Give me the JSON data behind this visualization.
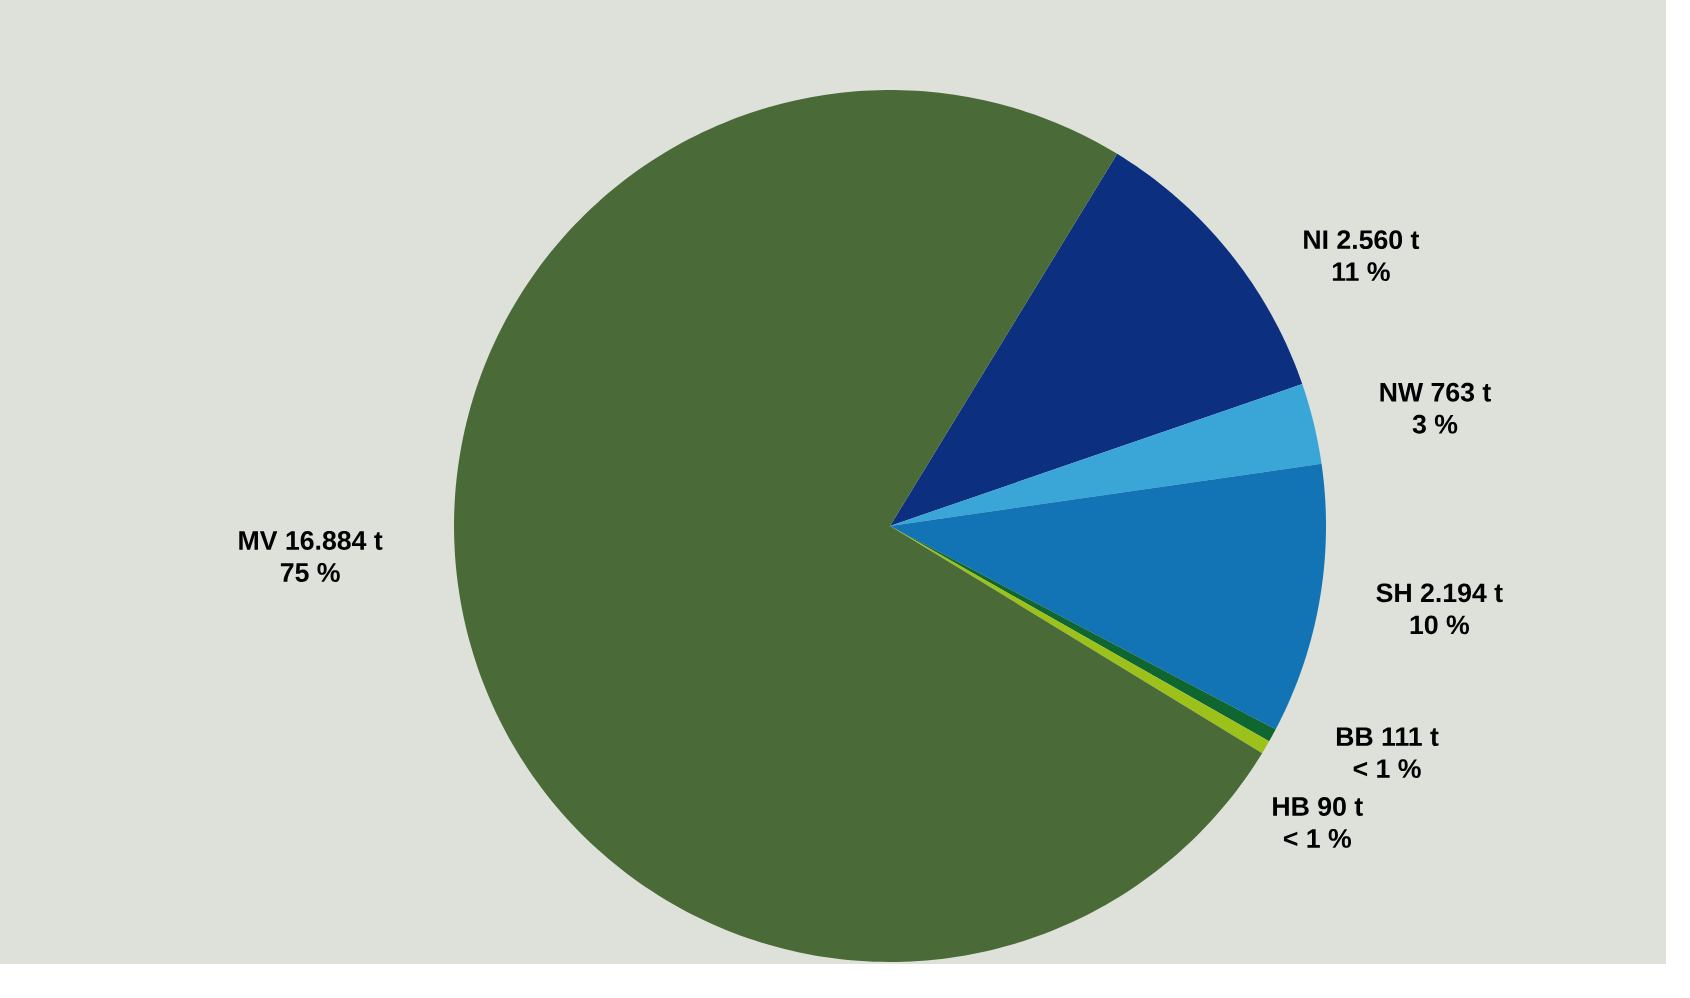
{
  "chart_data": {
    "type": "pie",
    "categories": [
      "NI 2.560 t",
      "NW 763 t",
      "SH 2.194 t",
      "BB 111 t",
      "HB 90 t",
      "MV 16.884 t"
    ],
    "values": [
      11,
      3,
      10,
      0.5,
      0.5,
      75
    ],
    "value_labels": [
      "11 %",
      "3 %",
      "10 %",
      "< 1 %",
      "< 1 %",
      "75 %"
    ],
    "colors": [
      "#0c2f80",
      "#3aa6d8",
      "#1273b5",
      "#0f6630",
      "#9cc11b",
      "#4a6b37"
    ]
  }
}
